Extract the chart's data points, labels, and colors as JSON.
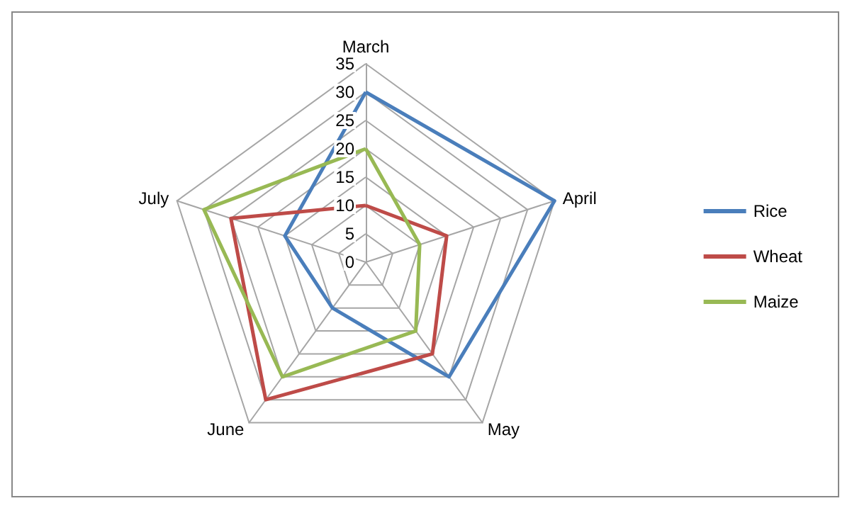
{
  "chart_data": {
    "type": "radar",
    "categories": [
      "March",
      "April",
      "May",
      "June",
      "July"
    ],
    "series": [
      {
        "name": "Rice",
        "color": "#4a7ebb",
        "values": [
          30,
          35,
          25,
          10,
          15
        ]
      },
      {
        "name": "Wheat",
        "color": "#be4b48",
        "values": [
          10,
          15,
          20,
          30,
          25
        ]
      },
      {
        "name": "Maize",
        "color": "#98b954",
        "values": [
          20,
          10,
          15,
          25,
          30
        ]
      }
    ],
    "ylim": [
      0,
      35
    ],
    "yticks": [
      0,
      5,
      10,
      15,
      20,
      25,
      30,
      35
    ],
    "legend": "right",
    "marker": "none",
    "grid": true
  }
}
